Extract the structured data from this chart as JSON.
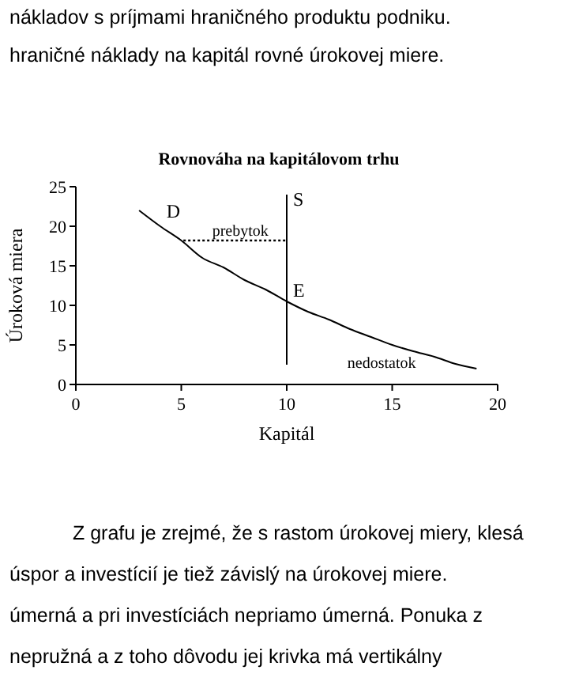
{
  "chart_data": {
    "type": "line",
    "title": "Rovnováha na kapitálovom trhu",
    "xlabel": "Kapitál",
    "ylabel": "Úroková miera",
    "xlim": [
      0,
      20
    ],
    "xticks": [
      0,
      5,
      10,
      15,
      20
    ],
    "ylim": [
      0,
      25
    ],
    "yticks": [
      0,
      5,
      10,
      15,
      20,
      25
    ],
    "grid": false,
    "marker": "none",
    "series": [
      {
        "color": "#000000",
        "line_style": "solid",
        "x": [
          3,
          4,
          5,
          6,
          7,
          8,
          9,
          10,
          11,
          12,
          13,
          14,
          15,
          16,
          17,
          18,
          19
        ],
        "values": [
          22,
          20,
          18.2,
          16,
          14.8,
          13.2,
          12,
          10.5,
          9.2,
          8.2,
          7,
          6,
          5,
          4.2,
          3.5,
          2.6,
          2
        ]
      },
      {
        "color": "#000000",
        "line_style": "solid",
        "x": [
          10,
          10
        ],
        "values": [
          2.5,
          24
        ]
      },
      {
        "color": "#000000",
        "line_style": "dotted",
        "x": [
          5.1,
          10
        ],
        "values": [
          18.2,
          18.2
        ]
      }
    ],
    "annotations": [
      "nákladov s príjmami hraničného produktu podniku.",
      "hraničné náklady na kapitál rovné úrokovej miere.",
      {
        "text": "D",
        "x": 4,
        "y": 20.5
      },
      {
        "text": "S",
        "x": 10,
        "y": 22
      },
      {
        "text": "prebytok",
        "x": 7.5,
        "y": 18.2
      },
      {
        "text": "E",
        "x": 10,
        "y": 10.5
      },
      "nedostatok",
      "Z grafu je zrejmé, že s rastom úrokovej miery, klesá",
      "úspor a investícií je tiež závislý na úrokovej miere.",
      "úmerná a pri investíciách nepriamo úmerná. Ponuka z",
      "nepružná a z toho dôvodu jej krivka má vertikálny"
    ]
  }
}
